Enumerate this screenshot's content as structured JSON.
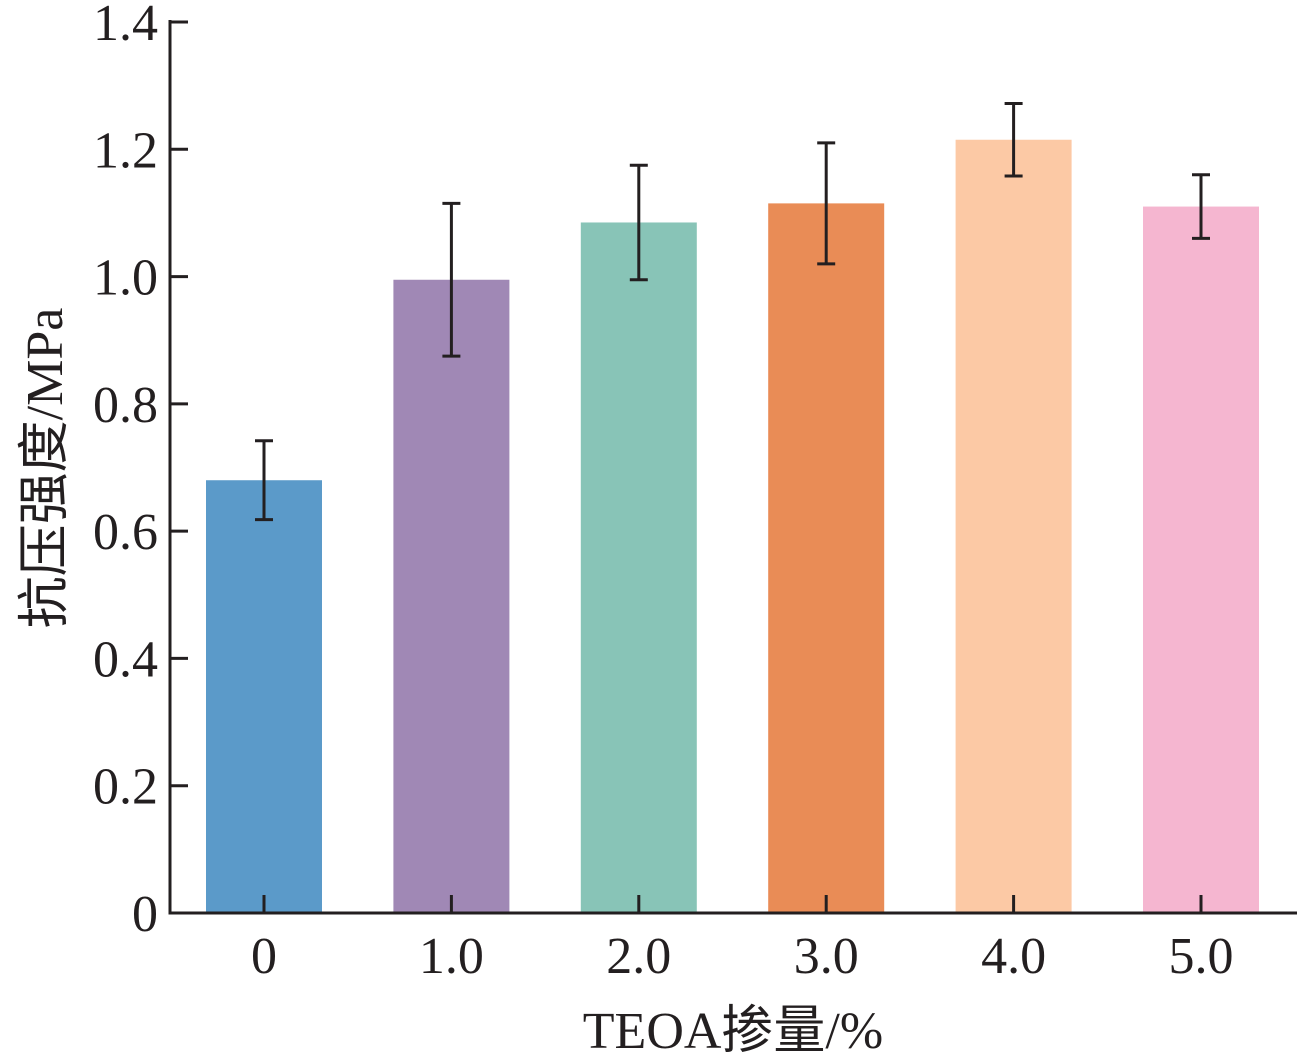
{
  "chart_data": {
    "type": "bar",
    "title": "",
    "xlabel": "TEOA掺量/%",
    "ylabel": "抗压强度/MPa",
    "categories": [
      "0",
      "1.0",
      "2.0",
      "3.0",
      "4.0",
      "5.0"
    ],
    "values": [
      0.68,
      0.995,
      1.085,
      1.115,
      1.215,
      1.11
    ],
    "errors": [
      0.062,
      0.12,
      0.09,
      0.095,
      0.057,
      0.05
    ],
    "bar_colors": [
      "#5b9ac9",
      "#a088b5",
      "#88c4b7",
      "#e98c56",
      "#fcc9a5",
      "#f5b6d0"
    ],
    "ylim": [
      0,
      1.4
    ],
    "yticks": [
      0,
      0.2,
      0.4,
      0.6,
      0.8,
      1.0,
      1.2,
      1.4
    ],
    "ytick_labels": [
      "0",
      "0.2",
      "0.4",
      "0.6",
      "0.8",
      "1.0",
      "1.2",
      "1.4"
    ],
    "grid": false,
    "legend": "none"
  }
}
